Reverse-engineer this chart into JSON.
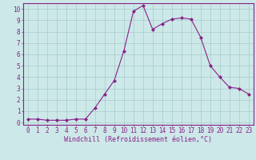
{
  "x": [
    0,
    1,
    2,
    3,
    4,
    5,
    6,
    7,
    8,
    9,
    10,
    11,
    12,
    13,
    14,
    15,
    16,
    17,
    18,
    19,
    20,
    21,
    22,
    23
  ],
  "y": [
    0.3,
    0.3,
    0.2,
    0.2,
    0.2,
    0.3,
    0.3,
    1.3,
    2.5,
    3.7,
    6.3,
    9.8,
    10.3,
    8.2,
    8.7,
    9.1,
    9.2,
    9.1,
    7.5,
    5.0,
    4.0,
    3.1,
    3.0,
    2.5
  ],
  "line_color": "#882288",
  "marker": "D",
  "marker_size": 2,
  "bg_color": "#cce8e8",
  "grid_color": "#aacccc",
  "xlabel": "Windchill (Refroidissement éolien,°C)",
  "xlim": [
    -0.5,
    23.5
  ],
  "ylim": [
    -0.2,
    10.5
  ],
  "yticks": [
    0,
    1,
    2,
    3,
    4,
    5,
    6,
    7,
    8,
    9,
    10
  ],
  "xticks": [
    0,
    1,
    2,
    3,
    4,
    5,
    6,
    7,
    8,
    9,
    10,
    11,
    12,
    13,
    14,
    15,
    16,
    17,
    18,
    19,
    20,
    21,
    22,
    23
  ],
  "tick_label_fontsize": 5.5,
  "xlabel_fontsize": 6.0,
  "label_color": "#882288",
  "spine_color": "#882288"
}
